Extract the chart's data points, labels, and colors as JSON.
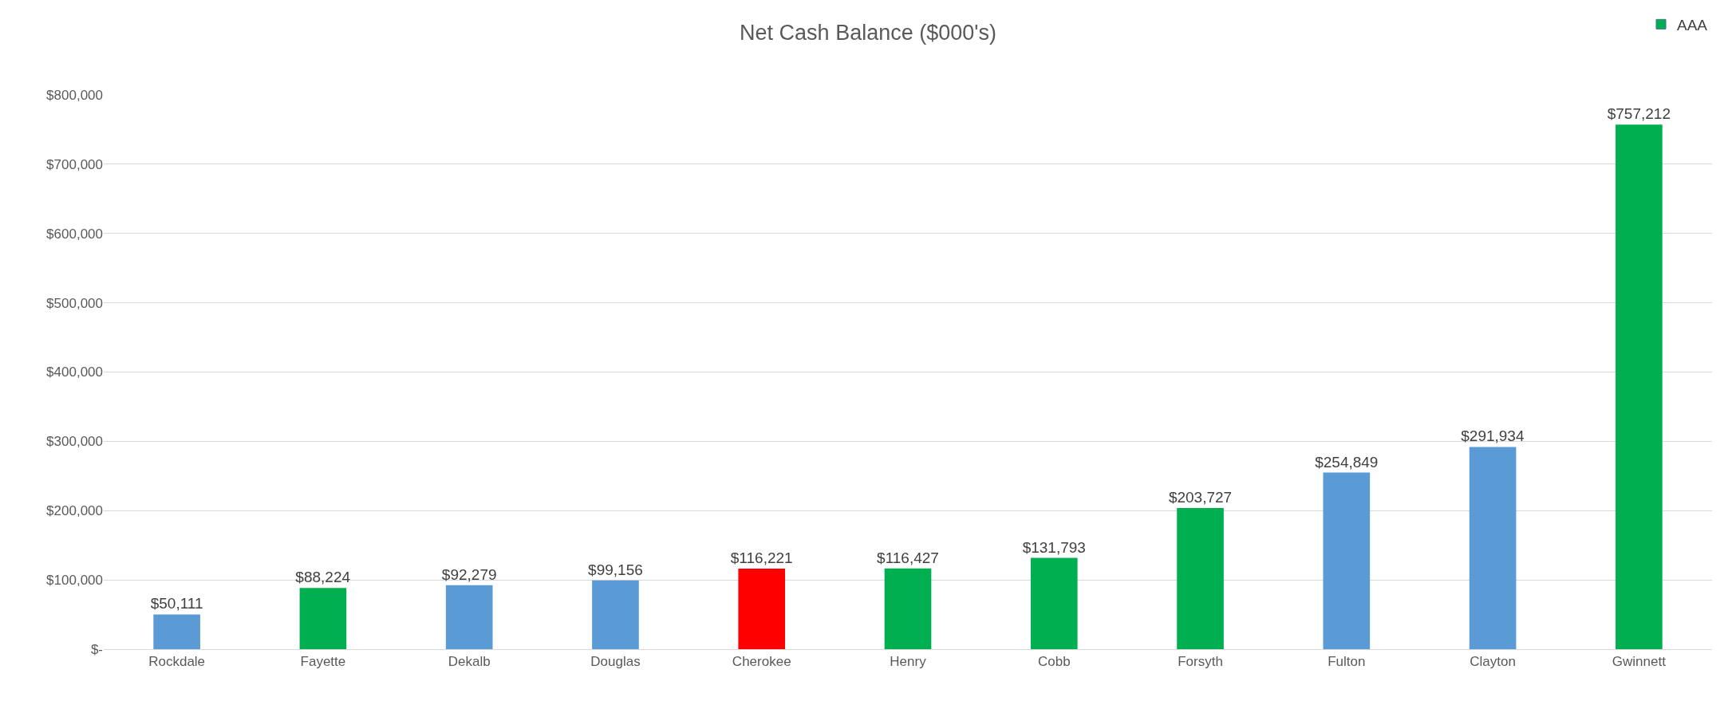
{
  "chart_data": {
    "type": "bar",
    "title": "Net Cash Balance ($000's)",
    "categories": [
      "Rockdale",
      "Fayette",
      "Dekalb",
      "Douglas",
      "Cherokee",
      "Henry",
      "Cobb",
      "Forsyth",
      "Fulton",
      "Clayton",
      "Gwinnett"
    ],
    "series": [
      {
        "name": "AAA",
        "color": "#00b050",
        "colors": [
          "#5b9bd5",
          "#00b050",
          "#5b9bd5",
          "#5b9bd5",
          "#ff0000",
          "#00b050",
          "#00b050",
          "#00b050",
          "#5b9bd5",
          "#5b9bd5",
          "#00b050"
        ],
        "values": [
          50111,
          88224,
          92279,
          99156,
          116221,
          116427,
          131793,
          203727,
          254849,
          291934,
          757212
        ],
        "value_labels": [
          "$50,111",
          "$88,224",
          "$92,279",
          "$99,156",
          "$116,221",
          "$116,427",
          "$131,793",
          "$203,727",
          "$254,849",
          "$291,934",
          "$757,212"
        ]
      }
    ],
    "ylim": [
      0,
      800000
    ],
    "yticks": [
      {
        "value": 0,
        "label": "$-"
      },
      {
        "value": 100000,
        "label": "$100,000"
      },
      {
        "value": 200000,
        "label": "$200,000"
      },
      {
        "value": 300000,
        "label": "$300,000"
      },
      {
        "value": 400000,
        "label": "$400,000"
      },
      {
        "value": 500000,
        "label": "$500,000"
      },
      {
        "value": 600000,
        "label": "$600,000"
      },
      {
        "value": 700000,
        "label": "$700,000"
      },
      {
        "value": 800000,
        "label": "$800,000"
      }
    ],
    "grid": "y",
    "legend": "top right"
  }
}
